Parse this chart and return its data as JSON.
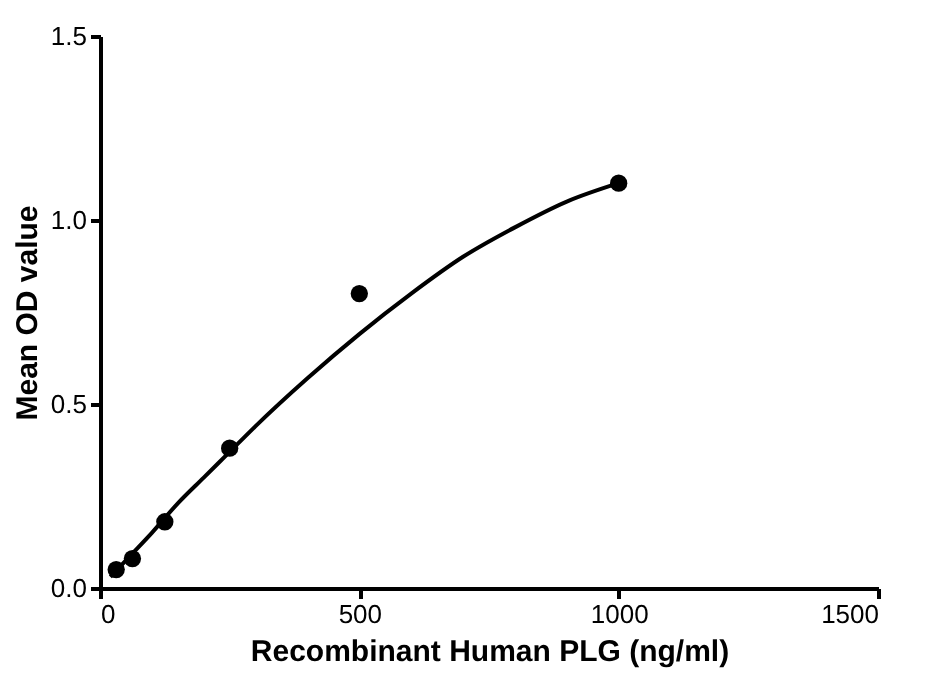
{
  "chart_data": {
    "type": "scatter",
    "xlabel": "Recombinant Human PLG (ng/ml)",
    "ylabel": "Mean OD value",
    "xlim": [
      0,
      1500
    ],
    "xticks": [
      0,
      500,
      1000,
      1500
    ],
    "ylim": [
      0,
      1.5
    ],
    "yticks": [
      {
        "value": 0,
        "label": "0.0"
      },
      0.5,
      {
        "value": 1,
        "label": "1.0"
      },
      1.5
    ],
    "grid": false,
    "series": [
      {
        "color": "#000000",
        "marker": "circle",
        "x": [
          31.25,
          62.5,
          125,
          250,
          500,
          1000
        ],
        "values": [
          0.05,
          0.08,
          0.18,
          0.38,
          0.8,
          1.1
        ]
      },
      {
        "type": "line",
        "color": "#000000",
        "line_style": "solid",
        "x": [
          20,
          60,
          100,
          150,
          200,
          250,
          300,
          400,
          500,
          600,
          700,
          800,
          900,
          1000
        ],
        "values": [
          0.03,
          0.09,
          0.15,
          0.23,
          0.3,
          0.37,
          0.44,
          0.57,
          0.69,
          0.8,
          0.9,
          0.98,
          1.05,
          1.1
        ]
      }
    ]
  }
}
